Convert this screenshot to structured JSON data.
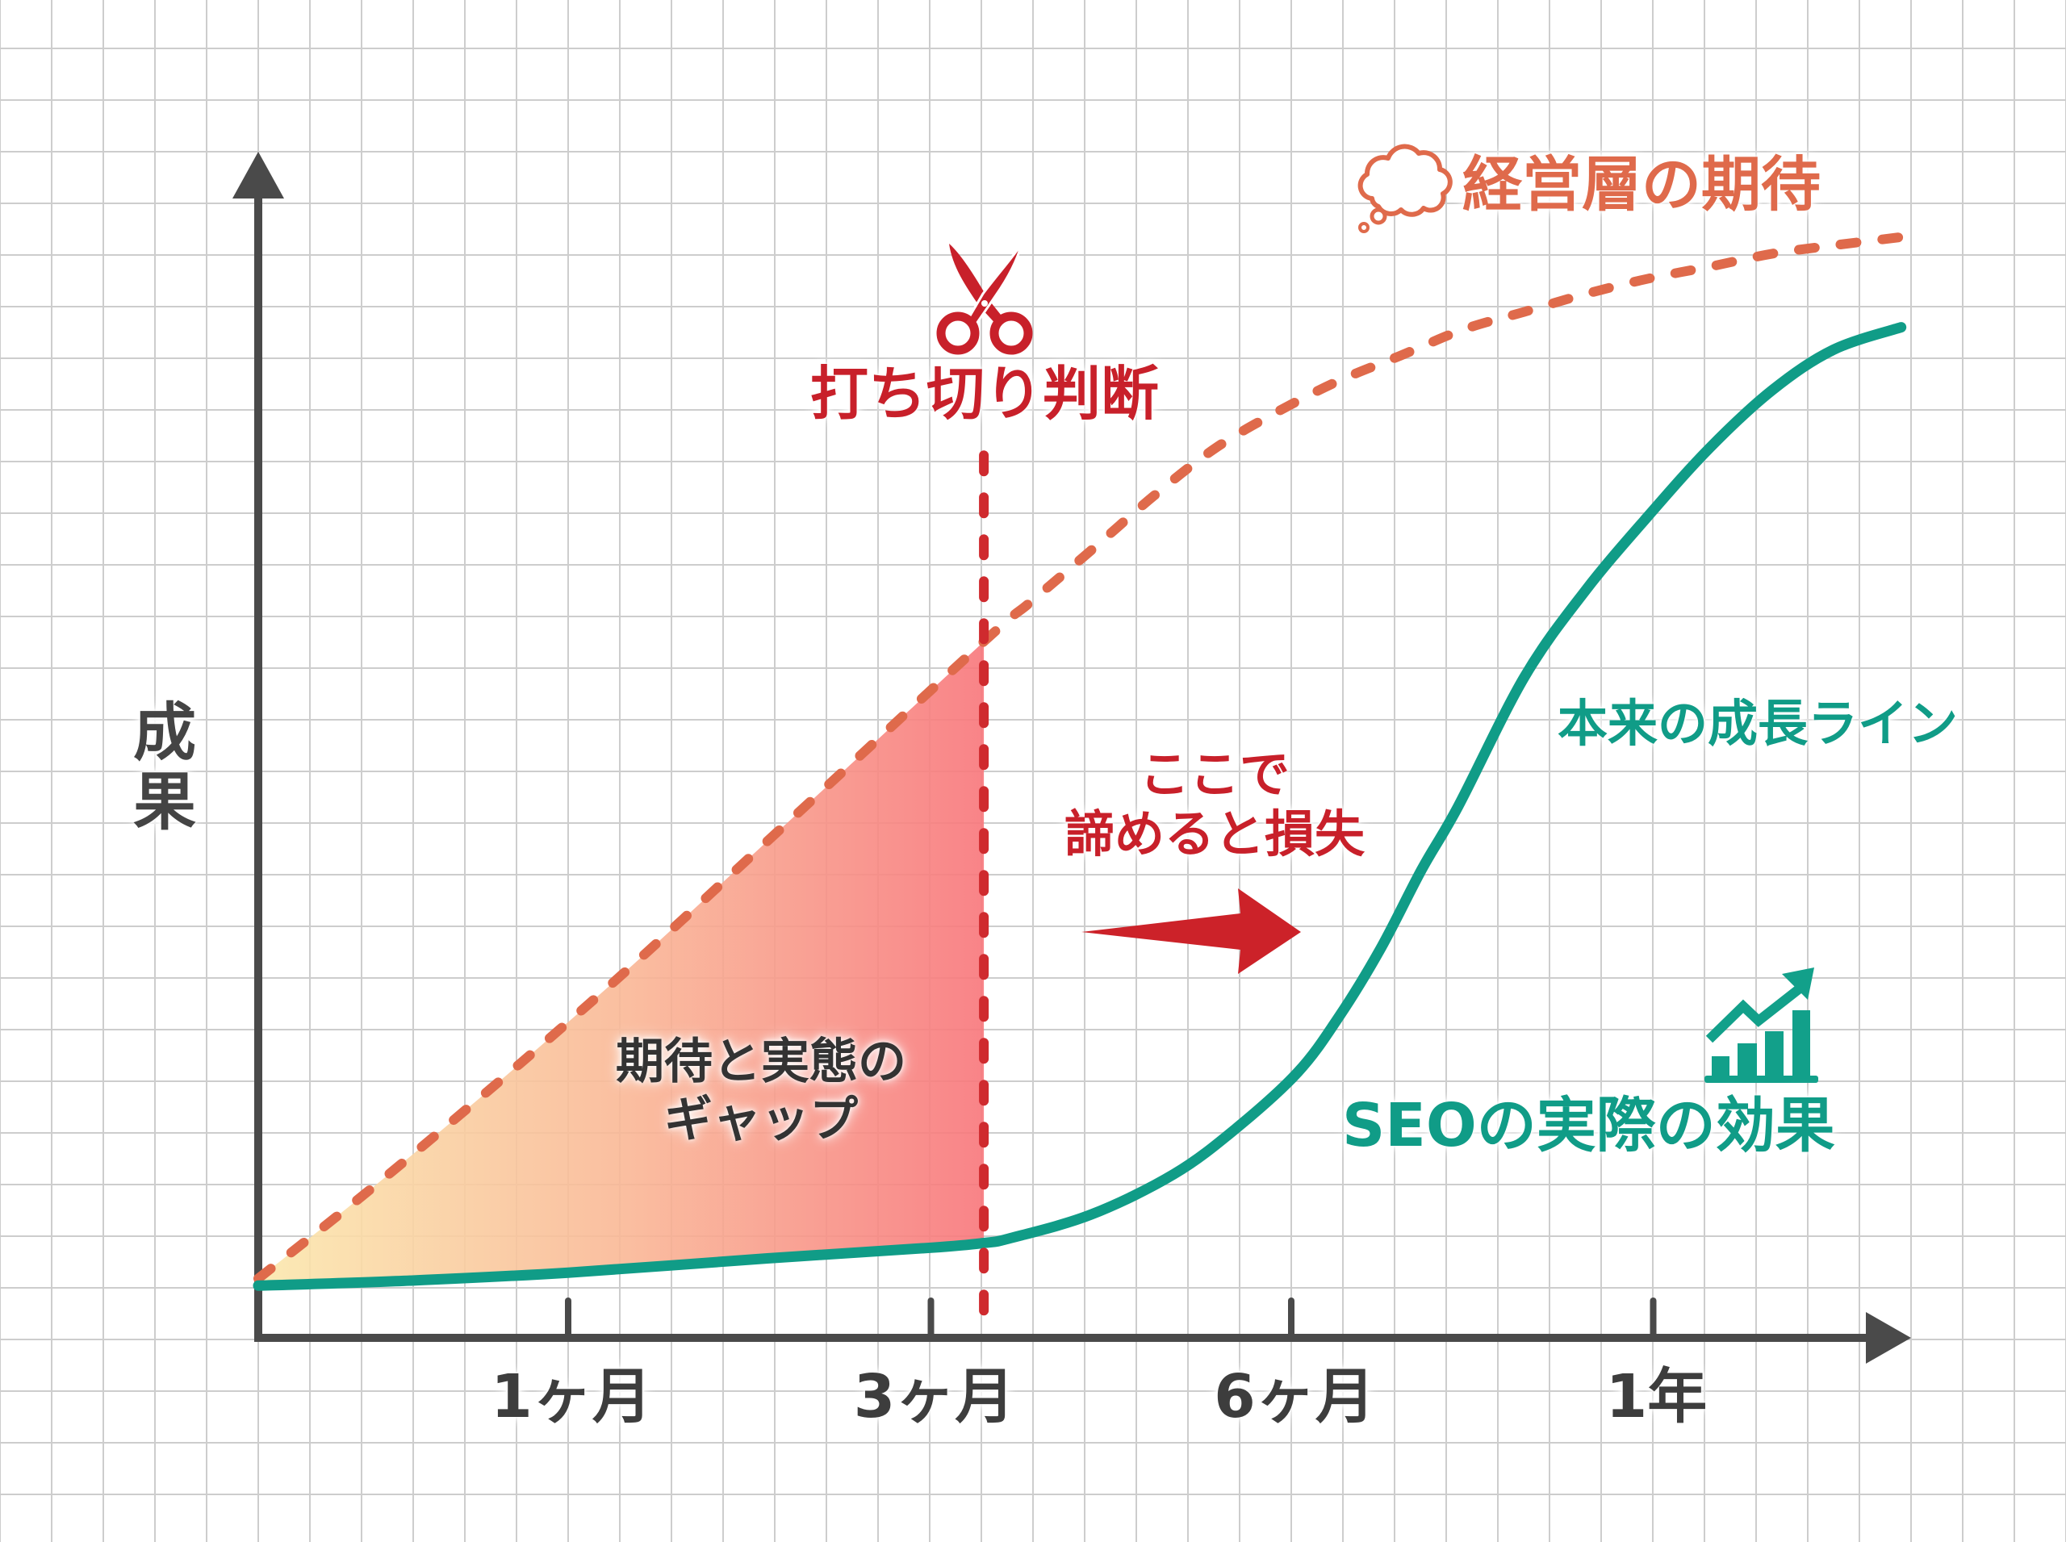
{
  "chart_data": {
    "type": "line",
    "title": "",
    "xlabel": "",
    "ylabel": "成果",
    "xlim": [
      0,
      100
    ],
    "ylim": [
      0,
      100
    ],
    "grid": true,
    "legend": "inline labels",
    "x_ticks": [
      {
        "label": "1ヶ月",
        "x": 18.75
      },
      {
        "label": "3ヶ月",
        "x": 40.7
      },
      {
        "label": "6ヶ月",
        "x": 62.5
      },
      {
        "label": "1年",
        "x": 84.4
      }
    ],
    "series": [
      {
        "name": "経営層の期待",
        "style": "dashed",
        "color": "#df6a4b",
        "points": [
          [
            0,
            5.0
          ],
          [
            8.6,
            14.6
          ],
          [
            20.7,
            29.0
          ],
          [
            31.6,
            42.9
          ],
          [
            43.9,
            58.7
          ],
          [
            46.7,
            62.0
          ],
          [
            50.4,
            66.4
          ],
          [
            54.2,
            71.0
          ],
          [
            57.9,
            75.0
          ],
          [
            61.7,
            78.1
          ],
          [
            65.4,
            80.7
          ],
          [
            69.1,
            82.8
          ],
          [
            72.9,
            85.0
          ],
          [
            76.6,
            86.5
          ],
          [
            80.3,
            88.0
          ],
          [
            84.1,
            89.3
          ],
          [
            87.8,
            90.3
          ],
          [
            91.6,
            91.4
          ],
          [
            95.3,
            92.1
          ],
          [
            99.4,
            92.8
          ]
        ]
      },
      {
        "name": "SEOの実際の効果",
        "style": "solid",
        "color": "#109c87",
        "points": [
          [
            0,
            4.4
          ],
          [
            8.8,
            4.8
          ],
          [
            18.75,
            5.5
          ],
          [
            30.8,
            6.7
          ],
          [
            40.7,
            7.6
          ],
          [
            43.9,
            8.0
          ],
          [
            45.5,
            8.4
          ],
          [
            50.4,
            10.4
          ],
          [
            55.4,
            13.8
          ],
          [
            59.2,
            17.7
          ],
          [
            62.9,
            22.4
          ],
          [
            65.4,
            27.1
          ],
          [
            67.9,
            32.8
          ],
          [
            70.4,
            39.5
          ],
          [
            72.6,
            44.8
          ],
          [
            76.6,
            55.7
          ],
          [
            80.3,
            63.0
          ],
          [
            84.1,
            69.3
          ],
          [
            87.8,
            75.0
          ],
          [
            91.6,
            79.9
          ],
          [
            95.3,
            83.3
          ],
          [
            99.4,
            85.2
          ]
        ]
      }
    ],
    "annotations": [
      {
        "type": "vline",
        "x": 43.9,
        "y_range": [
          0,
          74.4
        ],
        "style": "dashed",
        "color": "#cf2a2e",
        "label": "打ち切り判断"
      },
      {
        "type": "shaded_area",
        "between": [
          "経営層の期待",
          "SEOの実際の効果"
        ],
        "x_range": [
          0,
          43.9
        ],
        "label": "期待と実態のギャップ"
      },
      {
        "type": "arrow",
        "direction": "right",
        "color": "#cc2229",
        "label": "ここで諦めると損失"
      },
      {
        "type": "text",
        "label": "本来の成長ライン",
        "color": "#109c87"
      }
    ]
  },
  "axes": {
    "y_label": "成果",
    "color": "#4a4a4a"
  },
  "labels": {
    "expectation": "経営層の期待",
    "cutoff": "打ち切り判断",
    "loss_line1": "ここで",
    "loss_line2": "諦めると損失",
    "gap_line1": "期待と実態の",
    "gap_line2": "ギャップ",
    "growth_line": "本来の成長ライン",
    "actual_effect": "SEOの実際の効果"
  },
  "icons": {
    "expectation": "thought-cloud-icon",
    "cutoff": "scissors-icon",
    "actual_effect": "growth-chart-icon",
    "loss": "right-arrow-icon"
  },
  "colors": {
    "expectation": "#df6a4b",
    "actual": "#109c87",
    "cutoff": "#cf2a2e",
    "loss_text": "#c8202a",
    "axis": "#4a4a4a",
    "gap_start": "#fbe8ad",
    "gap_mid": "#f9b896",
    "gap_end": "#f8767b",
    "grid": "#cdcdcd"
  }
}
